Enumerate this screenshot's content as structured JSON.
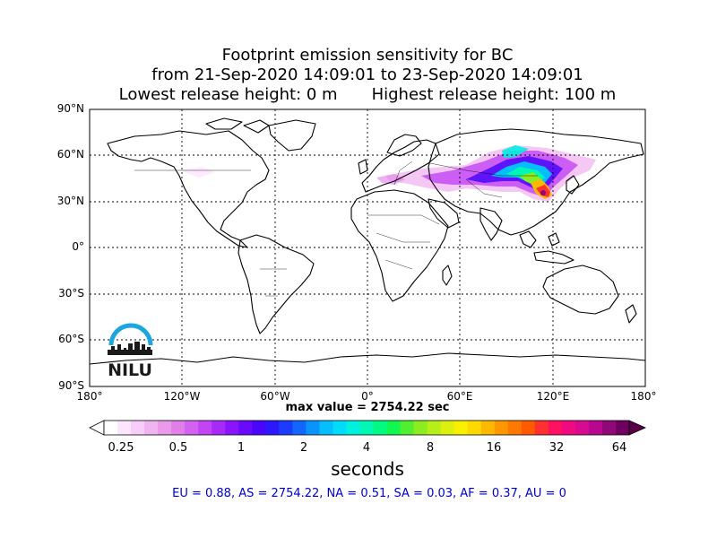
{
  "title": {
    "line1": "Footprint emission sensitivity for BC",
    "line2": "from 21-Sep-2020 14:09:01 to 23-Sep-2020 14:09:01",
    "lowest": "Lowest release height: 0 m",
    "highest": "Highest release height: 100 m"
  },
  "map": {
    "lat_labels": [
      "90°N",
      "60°N",
      "30°N",
      "0°",
      "30°S",
      "60°S",
      "90°S"
    ],
    "lon_labels": [
      "180°",
      "120°W",
      "60°W",
      "0°",
      "60°E",
      "120°E",
      "180°"
    ],
    "grid": true,
    "logo_text": "NILU",
    "logo_color": "#1aa7e0",
    "sensitivity_region": "East Asia / Siberia / Central Asia plume, maximum near eastern China"
  },
  "max_value": "max value = 2754.22 sec",
  "colorbar": {
    "ticks": [
      "0.25",
      "0.5",
      "1",
      "2",
      "4",
      "8",
      "16",
      "32",
      "64"
    ],
    "label": "seconds",
    "colors": [
      "#ffffff",
      "#fce6fc",
      "#f8cdf8",
      "#f0b4f0",
      "#e99ae9",
      "#e07fe8",
      "#d262f0",
      "#c244f5",
      "#a82af8",
      "#8a14fb",
      "#6a0afc",
      "#4a06fc",
      "#2d18fd",
      "#1b3cfd",
      "#1066fd",
      "#0a93fd",
      "#06bdfd",
      "#00dcfa",
      "#00f0e0",
      "#00f8b4",
      "#00fa82",
      "#10f850",
      "#50f030",
      "#8cec20",
      "#b8ee18",
      "#dcf010",
      "#f8f000",
      "#ffd800",
      "#ffb800",
      "#ff9800",
      "#ff7800",
      "#ff5a00",
      "#ff3030",
      "#ff1060",
      "#f00a80",
      "#d80a90",
      "#b80890",
      "#900878",
      "#700060"
    ]
  },
  "stats": "EU = 0.88,  AS = 2754.22,  NA = 0.51,  SA = 0.03,  AF = 0.37,  AU = 0"
}
